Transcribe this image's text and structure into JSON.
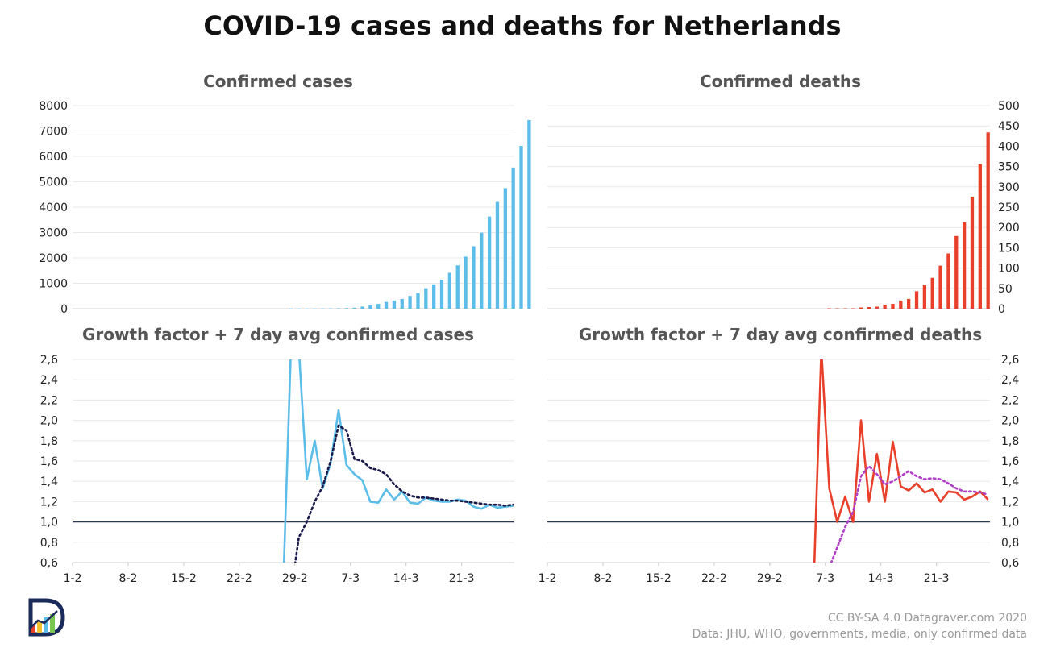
{
  "title": "COVID-19 cases and deaths for Netherlands",
  "credits": {
    "license": "CC BY-SA 4.0  Datagraver.com 2020",
    "source": "Data: JHU, WHO, governments, media, only confirmed data"
  },
  "colors": {
    "cases": "#5bbde8",
    "deaths": "#e8402a",
    "cases_avg": "#1a1a4a",
    "deaths_avg": "#b040c8",
    "baseline": "#2a3a5a",
    "grid": "#e8e8e8"
  },
  "logo": {
    "icon": "datagraver-logo-icon"
  },
  "chart_data": [
    {
      "id": "cases",
      "type": "bar",
      "title": "Confirmed cases",
      "ylim": [
        0,
        8000
      ],
      "yticks": [
        "0",
        "1000",
        "2000",
        "3000",
        "4000",
        "5000",
        "6000",
        "7000",
        "8000"
      ],
      "y_axis_side": "left",
      "x_start": "1-2",
      "series": [
        {
          "name": "Confirmed cases",
          "values": [
            0,
            0,
            0,
            0,
            0,
            0,
            0,
            0,
            0,
            0,
            0,
            0,
            0,
            0,
            0,
            0,
            0,
            0,
            0,
            0,
            0,
            0,
            0,
            0,
            0,
            0,
            0,
            1,
            1,
            1,
            2,
            6,
            10,
            18,
            24,
            38,
            82,
            128,
            188,
            265,
            321,
            382,
            503,
            614,
            804,
            959,
            1135,
            1413,
            1705,
            2051,
            2460,
            2994,
            3631,
            4204,
            4749,
            5560,
            6412,
            7431
          ]
        }
      ]
    },
    {
      "id": "deaths",
      "type": "bar",
      "title": "Confirmed deaths",
      "ylim": [
        0,
        500
      ],
      "yticks": [
        "0",
        "50",
        "100",
        "150",
        "200",
        "250",
        "300",
        "350",
        "400",
        "450",
        "500"
      ],
      "y_axis_side": "right",
      "x_start": "1-2",
      "series": [
        {
          "name": "Confirmed deaths",
          "values": [
            0,
            0,
            0,
            0,
            0,
            0,
            0,
            0,
            0,
            0,
            0,
            0,
            0,
            0,
            0,
            0,
            0,
            0,
            0,
            0,
            0,
            0,
            0,
            0,
            0,
            0,
            0,
            0,
            0,
            0,
            0,
            0,
            0,
            0,
            0,
            1,
            1,
            1,
            1,
            3,
            4,
            5,
            10,
            12,
            20,
            24,
            43,
            58,
            76,
            106,
            136,
            179,
            213,
            276,
            356,
            434
          ]
        }
      ]
    },
    {
      "id": "cases-growth",
      "type": "line",
      "title": "Growth factor + 7 day avg confirmed cases",
      "ylim": [
        0.6,
        2.6
      ],
      "yticks": [
        "0,6",
        "0,8",
        "1,0",
        "1,2",
        "1,4",
        "1,6",
        "1,8",
        "2,0",
        "2,2",
        "2,4",
        "2,6"
      ],
      "y_axis_side": "left",
      "baseline": 1.0,
      "x_start": "1-2",
      "xticks": [
        {
          "day": 0,
          "label": "1-2"
        },
        {
          "day": 7,
          "label": "8-2"
        },
        {
          "day": 14,
          "label": "15-2"
        },
        {
          "day": 21,
          "label": "22-2"
        },
        {
          "day": 28,
          "label": "29-2"
        },
        {
          "day": 35,
          "label": "7-3"
        },
        {
          "day": 42,
          "label": "14-3"
        },
        {
          "day": 49,
          "label": "21-3"
        }
      ],
      "series": [
        {
          "name": "Growth factor",
          "x": [
            26,
            27,
            28,
            29,
            30,
            31,
            32,
            33,
            34,
            35,
            36,
            37,
            38,
            39,
            40,
            41,
            42,
            43,
            44,
            45,
            46,
            47,
            48,
            49,
            50,
            51,
            52,
            53,
            54,
            55
          ],
          "y": [
            0.3,
            2.7,
            2.7,
            1.42,
            1.8,
            1.33,
            1.58,
            2.1,
            1.56,
            1.47,
            1.41,
            1.2,
            1.19,
            1.32,
            1.22,
            1.3,
            1.19,
            1.18,
            1.24,
            1.21,
            1.2,
            1.2,
            1.22,
            1.21,
            1.15,
            1.13,
            1.17,
            1.14,
            1.15,
            1.16
          ]
        },
        {
          "name": "7 day avg",
          "style": "dotted",
          "x": [
            27,
            28,
            29,
            30,
            31,
            32,
            33,
            34,
            35,
            36,
            37,
            38,
            39,
            40,
            41,
            42,
            43,
            44,
            45,
            46,
            47,
            48,
            49,
            50,
            51,
            52,
            53,
            54,
            55
          ],
          "y": [
            0.3,
            0.85,
            1.0,
            1.2,
            1.35,
            1.6,
            1.95,
            1.9,
            1.62,
            1.6,
            1.53,
            1.51,
            1.47,
            1.37,
            1.3,
            1.26,
            1.24,
            1.24,
            1.23,
            1.22,
            1.21,
            1.21,
            1.2,
            1.19,
            1.18,
            1.17,
            1.17,
            1.16,
            1.17
          ]
        }
      ]
    },
    {
      "id": "deaths-growth",
      "type": "line",
      "title": "Growth factor + 7 day avg confirmed deaths",
      "ylim": [
        0.6,
        2.6
      ],
      "yticks": [
        "0,6",
        "0,8",
        "1,0",
        "1,2",
        "1,4",
        "1,6",
        "1,8",
        "2,0",
        "2,2",
        "2,4",
        "2,6"
      ],
      "y_axis_side": "right",
      "baseline": 1.0,
      "x_start": "1-2",
      "xticks": [
        {
          "day": 0,
          "label": "1-2"
        },
        {
          "day": 7,
          "label": "8-2"
        },
        {
          "day": 14,
          "label": "15-2"
        },
        {
          "day": 21,
          "label": "22-2"
        },
        {
          "day": 28,
          "label": "29-2"
        },
        {
          "day": 35,
          "label": "7-3"
        },
        {
          "day": 42,
          "label": "14-3"
        },
        {
          "day": 49,
          "label": "21-3"
        }
      ],
      "series": [
        {
          "name": "Growth factor",
          "x": [
            33,
            34,
            35,
            36,
            37,
            38,
            39,
            40,
            41,
            42,
            43,
            44,
            45,
            46,
            47,
            48,
            49,
            50,
            51,
            52,
            53,
            54,
            55
          ],
          "y": [
            0.3,
            2.7,
            1.33,
            1.0,
            1.25,
            1.0,
            2.0,
            1.2,
            1.67,
            1.2,
            1.79,
            1.35,
            1.31,
            1.38,
            1.29,
            1.32,
            1.2,
            1.3,
            1.29,
            1.22,
            1.25,
            1.3,
            1.22
          ]
        },
        {
          "name": "7 day avg",
          "style": "dotted",
          "x": [
            35,
            36,
            37,
            38,
            39,
            40,
            41,
            42,
            43,
            44,
            45,
            46,
            47,
            48,
            49,
            50,
            51,
            52,
            53,
            54,
            55
          ],
          "y": [
            0.55,
            0.75,
            0.95,
            1.1,
            1.45,
            1.55,
            1.47,
            1.37,
            1.4,
            1.45,
            1.5,
            1.45,
            1.42,
            1.43,
            1.42,
            1.38,
            1.33,
            1.3,
            1.3,
            1.29,
            1.27
          ]
        }
      ]
    }
  ]
}
